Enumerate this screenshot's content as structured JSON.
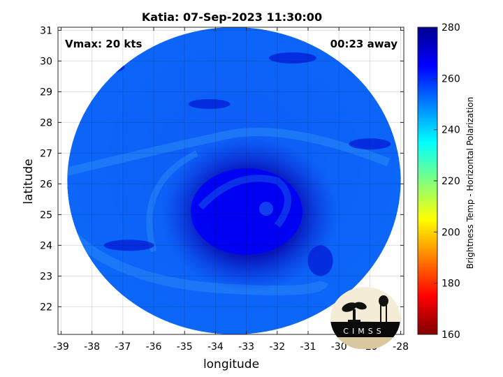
{
  "chart_data": {
    "type": "heatmap",
    "title": "Katia: 07-Sep-2023 11:30:00",
    "xlabel": "longitude",
    "ylabel": "latitude",
    "xlim": [
      -39.1,
      -27.9
    ],
    "ylim": [
      21.1,
      31.1
    ],
    "xticks": [
      -39,
      -38,
      -37,
      -36,
      -35,
      -34,
      -33,
      -32,
      -31,
      -30,
      -29,
      -28
    ],
    "yticks": [
      22,
      23,
      24,
      25,
      26,
      27,
      28,
      29,
      30,
      31
    ],
    "grid": true,
    "annotations": {
      "vmax": "Vmax: 20 kts",
      "time_away": "00:23 away"
    },
    "storm_center": {
      "lon": -32.9,
      "lat": 25.1
    },
    "swath": {
      "center_lon": -33.4,
      "center_lat": 26.1,
      "radius_lon": 5.4,
      "radius_lat": 5.0
    },
    "colorbar": {
      "label": "Brightness Temp - Horizontal Polarization",
      "min": 160,
      "max": 280,
      "ticks": [
        160,
        180,
        200,
        220,
        240,
        260,
        280
      ],
      "colors": [
        "#800000",
        "#ff0000",
        "#ff8000",
        "#ffff00",
        "#80ff80",
        "#00ffff",
        "#0080ff",
        "#0000ff",
        "#00008f"
      ]
    },
    "background_temp": 252,
    "core_temp": 266,
    "logo_text": "CIMSS"
  }
}
